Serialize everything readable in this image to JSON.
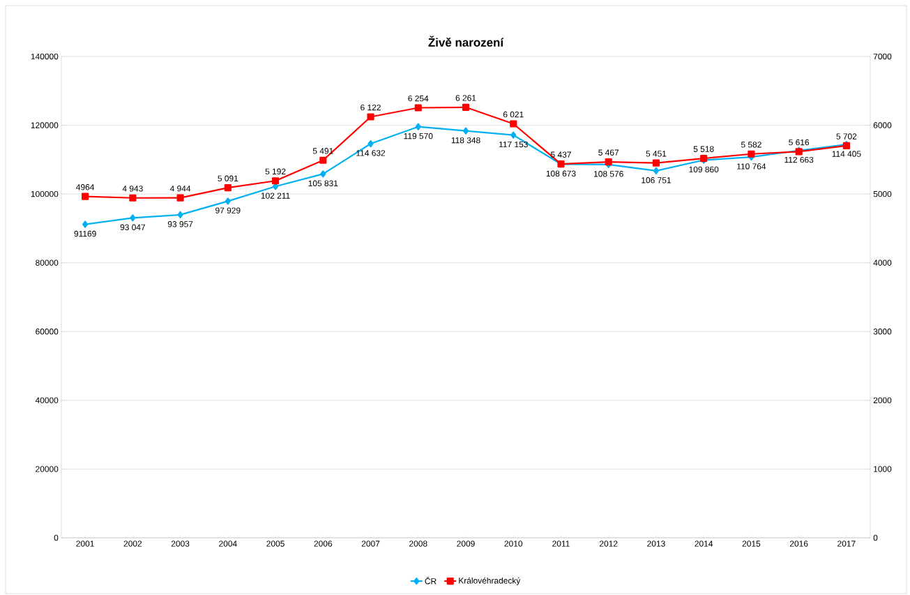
{
  "chart_data": {
    "type": "line",
    "title": "Živě narození",
    "categories": [
      "2001",
      "2002",
      "2003",
      "2004",
      "2005",
      "2006",
      "2007",
      "2008",
      "2009",
      "2010",
      "2011",
      "2012",
      "2013",
      "2014",
      "2015",
      "2016",
      "2017"
    ],
    "series": [
      {
        "name": "ČR",
        "color": "#00b0f0",
        "marker": "diamond",
        "values": [
          91169,
          93047,
          93957,
          97929,
          102211,
          105831,
          114632,
          119570,
          118348,
          117153,
          108673,
          108576,
          106751,
          109860,
          110764,
          112663,
          114405
        ],
        "value_labels": [
          "91169",
          "93 047",
          "93 957",
          "97 929",
          "102 211",
          "105 831",
          "114 632",
          "119 570",
          "118 348",
          "117 153",
          "108 673",
          "108 576",
          "106 751",
          "109 860",
          "110 764",
          "112 663",
          "114 405"
        ]
      },
      {
        "name": "Královéhradecký",
        "color": "#ff0000",
        "marker": "square",
        "axis": "y2",
        "values": [
          4964,
          4943,
          4944,
          5091,
          5192,
          5491,
          6122,
          6254,
          6261,
          6021,
          5437,
          5467,
          5451,
          5518,
          5582,
          5616,
          5702
        ],
        "value_labels": [
          "4964",
          "4 943",
          "4 944",
          "5 091",
          "5 192",
          "5 491",
          "6 122",
          "6 254",
          "6 261",
          "6 021",
          "5 437",
          "5 467",
          "5 451",
          "5 518",
          "5 582",
          "5 616",
          "5 702"
        ]
      }
    ],
    "ylim": [
      0,
      140000
    ],
    "yticks": [
      0,
      20000,
      40000,
      60000,
      80000,
      100000,
      120000,
      140000
    ],
    "y2lim": [
      0,
      7000
    ],
    "y2ticks": [
      0,
      1000,
      2000,
      3000,
      4000,
      5000,
      6000,
      7000
    ],
    "grid": "y",
    "legend": "bottom",
    "line_style": "solid"
  }
}
